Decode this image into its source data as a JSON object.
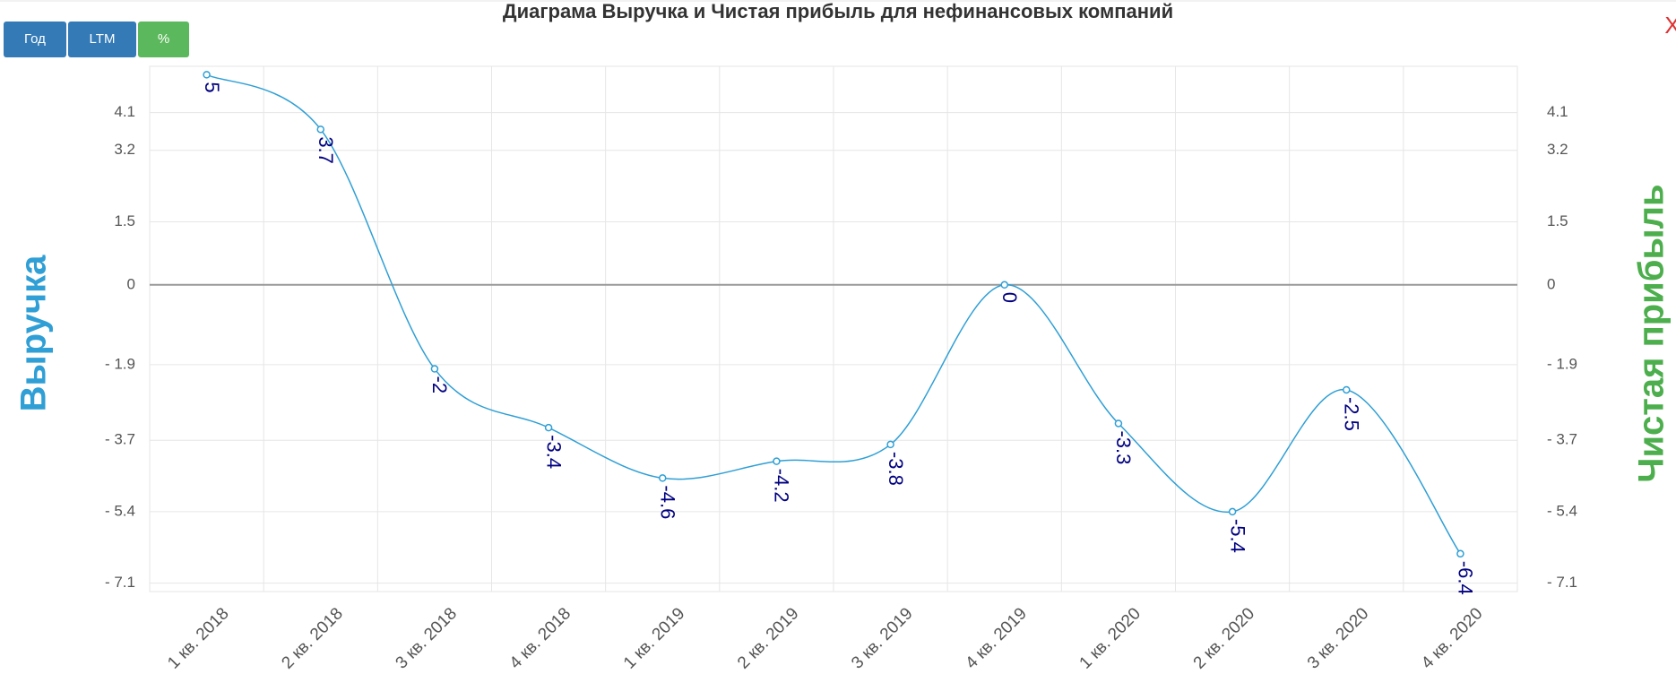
{
  "buttons": [
    "Год",
    "LTM",
    "%"
  ],
  "close": "X",
  "chart_data": {
    "type": "line",
    "title": "Диаграма Выручка и Чистая прибыль для нефинансовых компаний",
    "ylabel": "Выручка",
    "y2label": "Чистая прибыль",
    "categories": [
      "1 кв. 2018",
      "2 кв. 2018",
      "3 кв. 2018",
      "4 кв. 2018",
      "1 кв. 2019",
      "2 кв. 2019",
      "3 кв. 2019",
      "4 кв. 2019",
      "1 кв. 2020",
      "2 кв. 2020",
      "3 кв. 2020",
      "4 кв. 2020"
    ],
    "series": [
      {
        "color": "#2f9fd5",
        "values": [
          5,
          3.7,
          -2,
          -3.4,
          -4.6,
          -4.2,
          -3.8,
          0,
          -3.3,
          -5.4,
          -2.5,
          -6.4
        ]
      }
    ],
    "ylim": [
      -7.3,
      5.2
    ],
    "yticks": [
      4.1,
      3.2,
      1.5,
      0,
      {
        "value": -1.9,
        "label": "- 1.9"
      },
      {
        "value": -3.7,
        "label": "- 3.7"
      },
      {
        "value": -5.4,
        "label": "- 5.4"
      },
      {
        "value": -7.1,
        "label": "- 7.1"
      }
    ],
    "grid": true
  }
}
